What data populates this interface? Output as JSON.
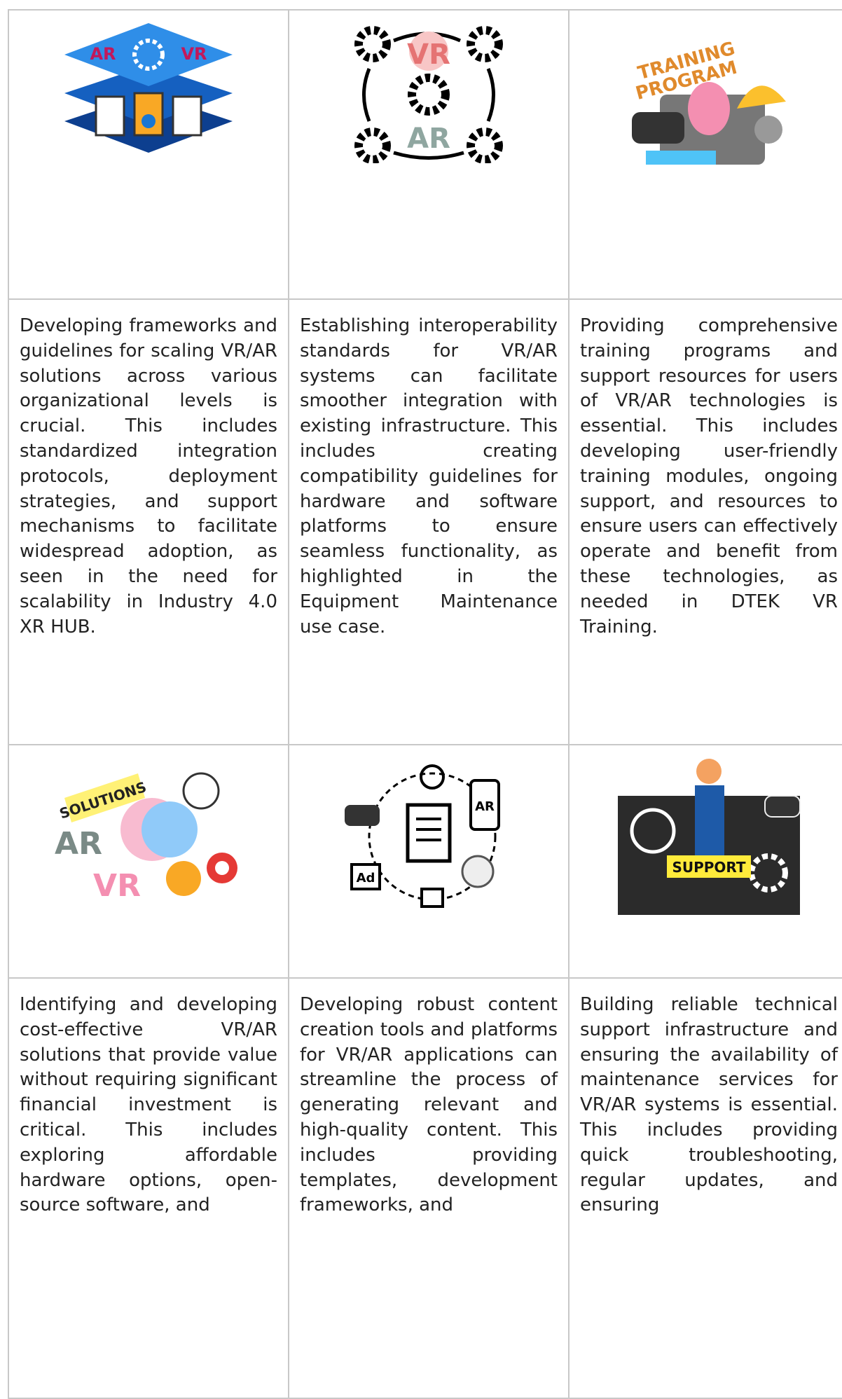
{
  "image_cells": [
    {
      "labels": [
        "AR",
        "VR"
      ]
    },
    {
      "labels": [
        "VR",
        "AR"
      ]
    },
    {
      "labels": [
        "TRAINING",
        "PROGRAM"
      ]
    },
    {
      "labels": [
        "SOLUTIONS",
        "AR",
        "VR"
      ]
    },
    {
      "labels": [
        "AR",
        "Ad"
      ]
    },
    {
      "labels": [
        "SUPPORT"
      ]
    }
  ],
  "text_cells": [
    "Developing frameworks and guidelines for scaling VR/AR solutions across various organizational levels is crucial. This includes standardized integration protocols, deployment strategies, and support mechanisms to facilitate widespread adoption, as seen in the need for scalability in Industry 4.0 XR HUB.",
    "Establishing interoperability standards for VR/AR systems can facilitate smoother integration with existing infrastructure. This includes creating compatibility guidelines for hardware and software platforms to ensure seamless functionality, as highlighted in the Equipment Maintenance use case.",
    "Providing comprehensive training programs and support resources for users of VR/AR technologies is essential. This includes developing user-friendly training modules, ongoing support, and resources to ensure users can effectively operate and benefit from these technologies, as needed in DTEK VR Training.",
    "Identifying and developing cost-effective VR/AR solutions that provide value without requiring significant financial investment is critical. This includes exploring affordable hardware options, open-source software, and",
    "Developing robust content creation tools and platforms for VR/AR applications can streamline the process of generating relevant and high-quality content. This includes providing templates, development frameworks, and",
    "Building reliable technical support infrastructure and ensuring the availability of maintenance services for VR/AR systems is essential. This includes providing quick troubleshooting, regular updates, and ensuring"
  ]
}
